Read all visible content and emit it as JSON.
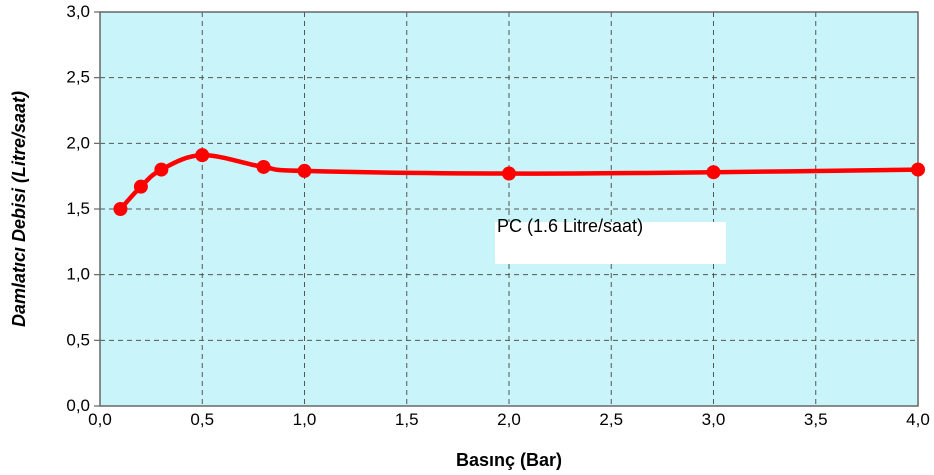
{
  "chart_data": {
    "type": "line",
    "title": "",
    "xlabel": "Basınç (Bar)",
    "ylabel": "Damlatıcı Debisi (Litre/saat)",
    "xlim": [
      0,
      4
    ],
    "ylim": [
      0,
      3
    ],
    "x_ticks": [
      "0,0",
      "0,5",
      "1,0",
      "1,5",
      "2,0",
      "2,5",
      "3,0",
      "3,5",
      "4,0"
    ],
    "x_tick_values": [
      0,
      0.5,
      1,
      1.5,
      2,
      2.5,
      3,
      3.5,
      4
    ],
    "y_ticks": [
      "0,0",
      "0,5",
      "1,0",
      "1,5",
      "2,0",
      "2,5",
      "3,0"
    ],
    "y_tick_values": [
      0,
      0.5,
      1,
      1.5,
      2,
      2.5,
      3
    ],
    "grid": true,
    "annotation": "PC (1.6 Litre/saat)",
    "colors": {
      "plot_bg": "#c9f4f9",
      "line": "#ff0000",
      "grid": "#555555"
    },
    "series": [
      {
        "x": [
          0.1,
          0.2,
          0.3,
          0.5,
          0.8,
          1.0,
          2.0,
          3.0,
          4.0
        ],
        "y": [
          1.5,
          1.67,
          1.8,
          1.91,
          1.82,
          1.79,
          1.77,
          1.78,
          1.8
        ]
      }
    ]
  }
}
